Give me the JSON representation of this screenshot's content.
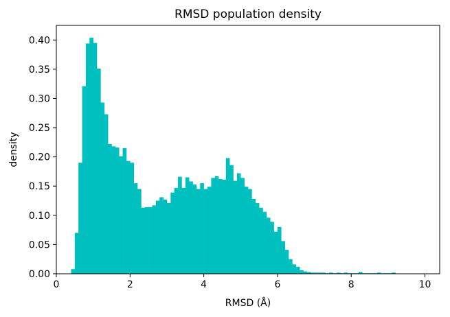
{
  "chart_data": {
    "type": "bar",
    "title": "RMSD population density",
    "xlabel": "RMSD (Å)",
    "ylabel": "density",
    "xlim": [
      0,
      10.4
    ],
    "ylim": [
      0,
      0.425
    ],
    "xticks": [
      0,
      2,
      4,
      6,
      8,
      10
    ],
    "xtick_labels": [
      "0",
      "2",
      "4",
      "6",
      "8",
      "10"
    ],
    "yticks": [
      0.0,
      0.05,
      0.1,
      0.15,
      0.2,
      0.25,
      0.3,
      0.35,
      0.4
    ],
    "ytick_labels": [
      "0.00",
      "0.05",
      "0.10",
      "0.15",
      "0.20",
      "0.25",
      "0.30",
      "0.35",
      "0.40"
    ],
    "bin_start": 0.4,
    "bin_width": 0.1,
    "color": "#00bfbf",
    "grid": false,
    "values": [
      0.008,
      0.07,
      0.19,
      0.321,
      0.394,
      0.404,
      0.395,
      0.351,
      0.293,
      0.273,
      0.222,
      0.218,
      0.216,
      0.201,
      0.215,
      0.193,
      0.19,
      0.155,
      0.145,
      0.113,
      0.114,
      0.114,
      0.117,
      0.125,
      0.131,
      0.127,
      0.121,
      0.139,
      0.147,
      0.166,
      0.147,
      0.165,
      0.158,
      0.153,
      0.145,
      0.155,
      0.145,
      0.149,
      0.164,
      0.167,
      0.162,
      0.161,
      0.198,
      0.186,
      0.159,
      0.172,
      0.164,
      0.149,
      0.145,
      0.128,
      0.121,
      0.113,
      0.106,
      0.096,
      0.089,
      0.072,
      0.08,
      0.056,
      0.041,
      0.025,
      0.016,
      0.012,
      0.006,
      0.004,
      0.003,
      0.002,
      0.002,
      0.002,
      0.002,
      0.001,
      0.002,
      0.001,
      0.002,
      0.001,
      0.002,
      0.001,
      0.001,
      0.001,
      0.003,
      0.001,
      0.001,
      0.001,
      0.001,
      0.002,
      0.001,
      0.001,
      0.001,
      0.002
    ]
  }
}
